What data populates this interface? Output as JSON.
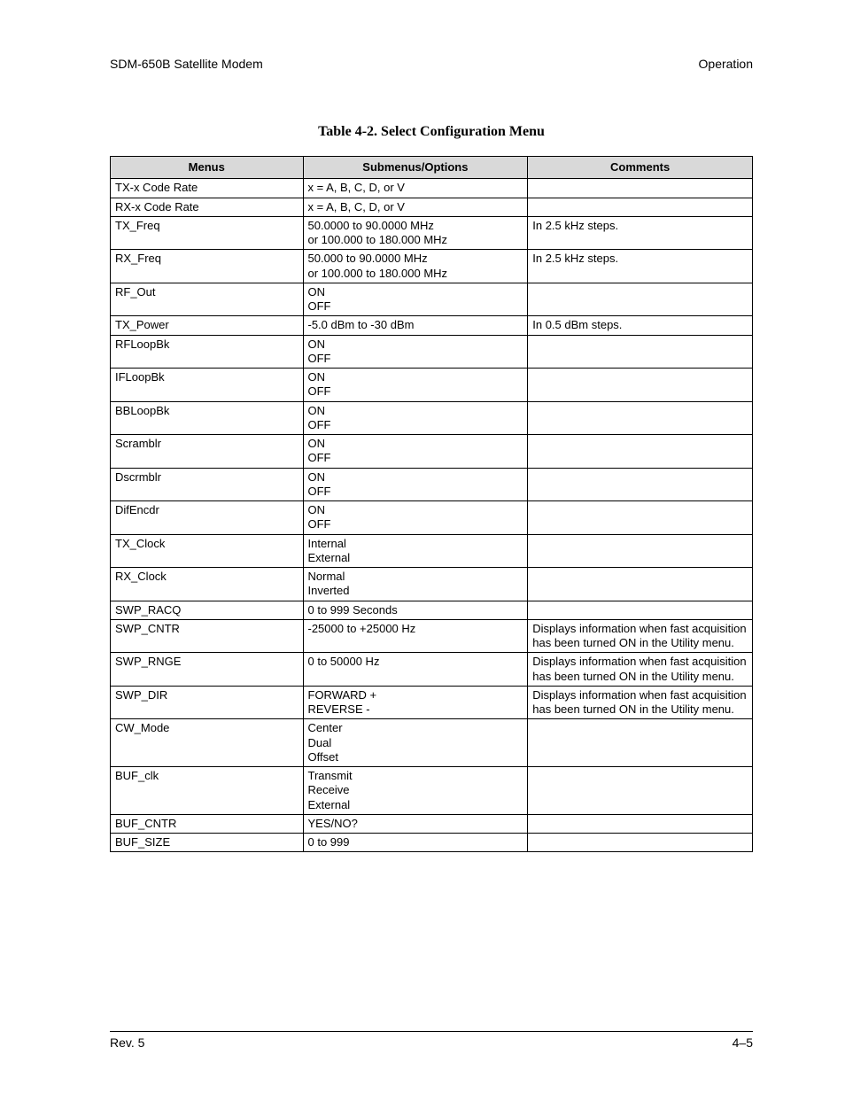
{
  "header": {
    "left": "SDM-650B Satellite Modem",
    "right": "Operation"
  },
  "table": {
    "title": "Table 4-2.  Select Configuration Menu",
    "columns": [
      "Menus",
      "Submenus/Options",
      "Comments"
    ],
    "rows": [
      {
        "menu": "TX-x Code Rate",
        "options": [
          "x = A, B, C, D, or V"
        ],
        "comments": []
      },
      {
        "menu": "RX-x Code Rate",
        "options": [
          "x = A, B, C, D, or V"
        ],
        "comments": []
      },
      {
        "menu": "TX_Freq",
        "options": [
          "50.0000 to 90.0000 MHz",
          "or 100.000 to 180.000 MHz"
        ],
        "comments": [
          "In 2.5 kHz steps."
        ]
      },
      {
        "menu": "RX_Freq",
        "options": [
          "50.000 to 90.0000 MHz",
          "or 100.000 to 180.000 MHz"
        ],
        "comments": [
          "In 2.5 kHz steps."
        ]
      },
      {
        "menu": "RF_Out",
        "options": [
          "ON",
          "OFF"
        ],
        "comments": []
      },
      {
        "menu": "TX_Power",
        "options": [
          "-5.0 dBm to -30 dBm"
        ],
        "comments": [
          "In 0.5 dBm steps."
        ]
      },
      {
        "menu": "RFLoopBk",
        "options": [
          "ON",
          "OFF"
        ],
        "comments": []
      },
      {
        "menu": "IFLoopBk",
        "options": [
          "ON",
          "OFF"
        ],
        "comments": []
      },
      {
        "menu": "BBLoopBk",
        "options": [
          "ON",
          "OFF"
        ],
        "comments": []
      },
      {
        "menu": "Scramblr",
        "options": [
          "ON",
          "OFF"
        ],
        "comments": []
      },
      {
        "menu": "Dscrmblr",
        "options": [
          "ON",
          "OFF"
        ],
        "comments": []
      },
      {
        "menu": "DifEncdr",
        "options": [
          "ON",
          "OFF"
        ],
        "comments": []
      },
      {
        "menu": "TX_Clock",
        "options": [
          "Internal",
          "External"
        ],
        "comments": []
      },
      {
        "menu": "RX_Clock",
        "options": [
          "Normal",
          "Inverted"
        ],
        "comments": []
      },
      {
        "menu": "SWP_RACQ",
        "options": [
          "0 to 999 Seconds"
        ],
        "comments": []
      },
      {
        "menu": "SWP_CNTR",
        "options": [
          "-25000 to +25000 Hz"
        ],
        "comments": [
          "Displays information when fast acquisition has been turned ON in the Utility menu."
        ]
      },
      {
        "menu": "SWP_RNGE",
        "options": [
          "0 to 50000 Hz"
        ],
        "comments": [
          "Displays information when fast acquisition has been turned ON in the Utility menu."
        ]
      },
      {
        "menu": "SWP_DIR",
        "options": [
          "FORWARD +",
          "REVERSE -"
        ],
        "comments": [
          "Displays information when fast acquisition has been turned ON in the Utility menu."
        ]
      },
      {
        "menu": "CW_Mode",
        "options": [
          "Center",
          "Dual",
          "Offset"
        ],
        "comments": []
      },
      {
        "menu": "BUF_clk",
        "options": [
          "Transmit",
          "Receive",
          "External"
        ],
        "comments": []
      },
      {
        "menu": "BUF_CNTR",
        "options": [
          "YES/NO?"
        ],
        "comments": []
      },
      {
        "menu": "BUF_SIZE",
        "options": [
          "0 to 999"
        ],
        "comments": []
      }
    ]
  },
  "footer": {
    "left": "Rev. 5",
    "right": "4–5"
  }
}
